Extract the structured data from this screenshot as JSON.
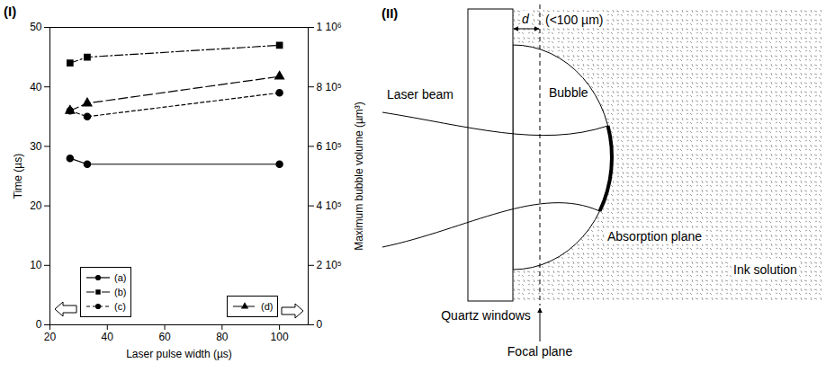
{
  "chart_data": {
    "type": "line",
    "panel": "(I)",
    "xlabel": "Laser pulse width (µs)",
    "ylabel": "Time (µs)",
    "y2label": "Maximum bubble volume (µm³)",
    "x": [
      27,
      33,
      100
    ],
    "xlim": [
      20,
      110
    ],
    "xticks": [
      20,
      40,
      60,
      80,
      100
    ],
    "ylim": [
      0,
      50
    ],
    "yticks": [
      0,
      10,
      20,
      30,
      40,
      50
    ],
    "y2lim": [
      0,
      1000000
    ],
    "y2ticks": [
      0,
      {
        "value": 200000,
        "label": "2 10⁵"
      },
      {
        "value": 400000,
        "label": "4 10⁵"
      },
      {
        "value": 600000,
        "label": "6 10⁵"
      },
      {
        "value": 800000,
        "label": "8 10⁵"
      },
      {
        "value": 1000000,
        "label": "1 10⁶"
      }
    ],
    "legend": "lower left",
    "series": [
      {
        "name": "(a)",
        "color": "#000000",
        "marker": "circle",
        "line_style": "solid",
        "axis": "y",
        "values": [
          28,
          27,
          27
        ]
      },
      {
        "name": "(b)",
        "color": "#000000",
        "marker": "square",
        "line_style": "dashdot",
        "axis": "y",
        "values": [
          44,
          45,
          47
        ]
      },
      {
        "name": "(c)",
        "color": "#000000",
        "marker": "circle",
        "line_style": "dashed",
        "axis": "y",
        "values": [
          36,
          35,
          39
        ]
      },
      {
        "name": "(d)",
        "color": "#000000",
        "marker": "triangle",
        "line_style": "longdash",
        "axis": "y2",
        "values": [
          720000,
          745000,
          835000
        ]
      }
    ]
  },
  "diagram": {
    "label": "(II)",
    "labels": {
      "laser_beam": "Laser beam",
      "bubble": "Bubble",
      "distance": "d",
      "distance_note": "(<100 µm)",
      "absorption_plane": "Absorption plane",
      "ink_solution": "Ink solution",
      "window": "Quartz windows",
      "focal_plane": "Focal plane"
    }
  }
}
